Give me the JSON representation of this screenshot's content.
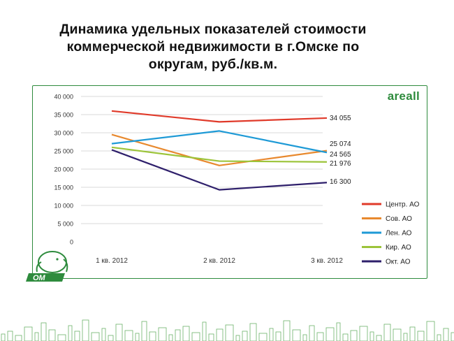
{
  "title": {
    "line1": "Динамика удельных показателей стоимости",
    "line2": "коммерческой недвижимости в г.Омске по",
    "line3": "округам, руб./кв.м."
  },
  "brand": "areall",
  "logo_text": "ОМ",
  "chart_data": {
    "type": "line",
    "categories": [
      "1 кв. 2012",
      "2 кв. 2012",
      "3 кв. 2012"
    ],
    "ylim": [
      0,
      40000
    ],
    "yticks": [
      "0",
      "5 000",
      "10 000",
      "15 000",
      "20 000",
      "25 000",
      "30 000",
      "35 000",
      "40 000"
    ],
    "ytick_values": [
      0,
      5000,
      10000,
      15000,
      20000,
      25000,
      30000,
      35000,
      40000
    ],
    "grid": true,
    "legend_position": "right",
    "series": [
      {
        "name": "Центр. АО",
        "color": "#e03a2a",
        "values": [
          36000,
          33000,
          34055
        ],
        "end_label": "34 055"
      },
      {
        "name": "Сов. АО",
        "color": "#e8892e",
        "values": [
          29500,
          21000,
          25074
        ],
        "end_label": "25 074"
      },
      {
        "name": "Лен. АО",
        "color": "#1e9ad6",
        "values": [
          27000,
          30500,
          24565
        ],
        "end_label": "24 565"
      },
      {
        "name": "Кир. АО",
        "color": "#9cc43a",
        "values": [
          26000,
          22200,
          21976
        ],
        "end_label": "21 976"
      },
      {
        "name": "Окт. АО",
        "color": "#2e1f6b",
        "values": [
          25300,
          14300,
          16300
        ],
        "end_label": "16 300"
      }
    ]
  },
  "colors": {
    "frame": "#2e8b3d",
    "brand": "#2e8b3d",
    "grid": "#d9d9d9",
    "skyline": "#6db36a"
  }
}
